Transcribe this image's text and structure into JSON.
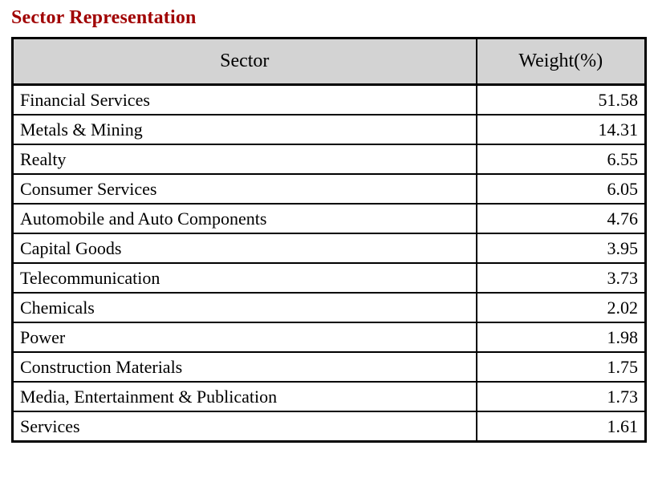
{
  "title": "Sector Representation",
  "colors": {
    "title_text": "#a00000",
    "header_background": "#d3d3d3",
    "table_border": "#000000"
  },
  "chart_data": {
    "type": "table",
    "title": "Sector Representation",
    "columns": [
      "Sector",
      "Weight(%)"
    ],
    "rows": [
      [
        "Financial Services",
        "51.58"
      ],
      [
        "Metals & Mining",
        "14.31"
      ],
      [
        "Realty",
        "6.55"
      ],
      [
        "Consumer Services",
        "6.05"
      ],
      [
        "Automobile and Auto Components",
        "4.76"
      ],
      [
        "Capital Goods",
        "3.95"
      ],
      [
        "Telecommunication",
        "3.73"
      ],
      [
        "Chemicals",
        "2.02"
      ],
      [
        "Power",
        "1.98"
      ],
      [
        "Construction Materials",
        "1.75"
      ],
      [
        "Media, Entertainment & Publication",
        "1.73"
      ],
      [
        "Services",
        "1.61"
      ]
    ]
  }
}
